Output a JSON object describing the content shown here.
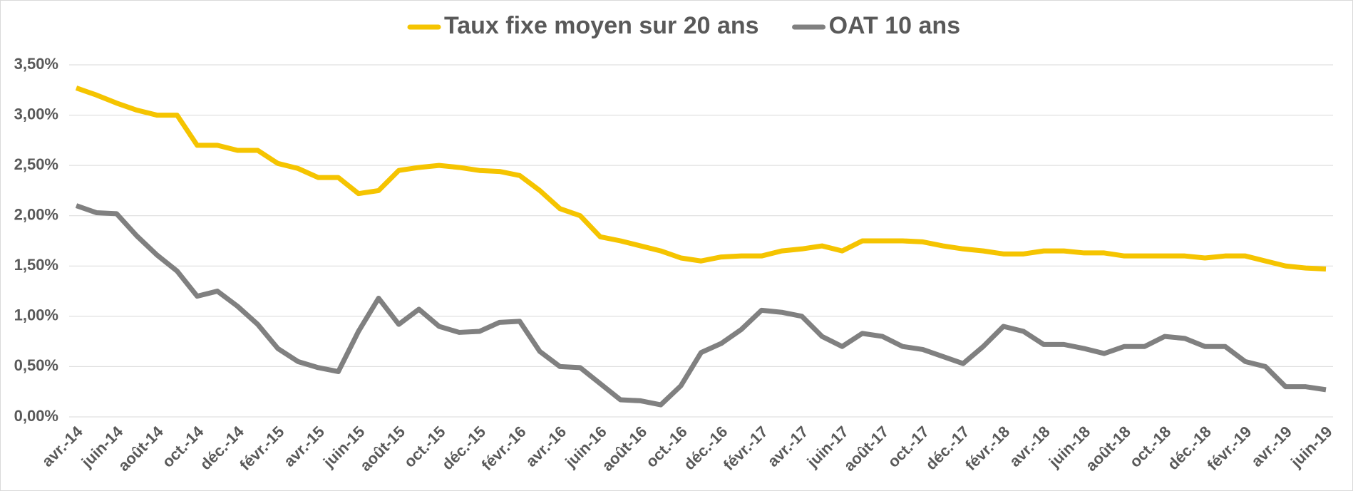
{
  "chart_data": {
    "type": "line",
    "categories": [
      "avr.-14",
      null,
      "juin-14",
      null,
      "août-14",
      null,
      "oct.-14",
      null,
      "déc.-14",
      null,
      "févr.-15",
      null,
      "avr.-15",
      null,
      "juin-15",
      null,
      "août-15",
      null,
      "oct.-15",
      null,
      "déc.-15",
      null,
      "févr.-16",
      null,
      "avr.-16",
      null,
      "juin-16",
      null,
      "août-16",
      null,
      "oct.-16",
      null,
      "déc.-16",
      null,
      "févr.-17",
      null,
      "avr.-17",
      null,
      "juin-17",
      null,
      "août-17",
      null,
      "oct.-17",
      null,
      "déc.-17",
      null,
      "févr.-18",
      null,
      "avr.-18",
      null,
      "juin-18",
      null,
      "août-18",
      null,
      "oct.-18",
      null,
      "déc.-18",
      null,
      "févr.-19",
      null,
      "avr.-19",
      null,
      "juin-19"
    ],
    "series": [
      {
        "name": "Taux fixe moyen sur 20 ans",
        "color": "#f5c400",
        "values": [
          3.27,
          3.2,
          3.12,
          3.05,
          3.0,
          3.0,
          2.7,
          2.7,
          2.65,
          2.65,
          2.52,
          2.47,
          2.38,
          2.38,
          2.22,
          2.25,
          2.45,
          2.48,
          2.5,
          2.48,
          2.45,
          2.44,
          2.4,
          2.25,
          2.07,
          2.0,
          1.79,
          1.75,
          1.7,
          1.65,
          1.58,
          1.55,
          1.59,
          1.6,
          1.6,
          1.65,
          1.67,
          1.7,
          1.65,
          1.75,
          1.75,
          1.75,
          1.74,
          1.7,
          1.67,
          1.65,
          1.62,
          1.62,
          1.65,
          1.65,
          1.63,
          1.63,
          1.6,
          1.6,
          1.6,
          1.6,
          1.58,
          1.6,
          1.6,
          1.55,
          1.5,
          1.48,
          1.47
        ]
      },
      {
        "name": "OAT 10 ans",
        "color": "#808080",
        "values": [
          2.1,
          2.03,
          2.02,
          1.8,
          1.61,
          1.45,
          1.2,
          1.25,
          1.1,
          0.92,
          0.68,
          0.55,
          0.49,
          0.45,
          0.85,
          1.18,
          0.92,
          1.07,
          0.9,
          0.84,
          0.85,
          0.94,
          0.95,
          0.65,
          0.5,
          0.49,
          0.33,
          0.17,
          0.16,
          0.12,
          0.31,
          0.64,
          0.73,
          0.87,
          1.06,
          1.04,
          1.0,
          0.8,
          0.7,
          0.83,
          0.8,
          0.7,
          0.67,
          0.6,
          0.53,
          0.7,
          0.9,
          0.85,
          0.72,
          0.72,
          0.68,
          0.63,
          0.7,
          0.7,
          0.8,
          0.78,
          0.7,
          0.7,
          0.55,
          0.5,
          0.3,
          0.3,
          0.27
        ]
      }
    ],
    "ylim": [
      0,
      3.5
    ],
    "yticks": [
      {
        "value": 0,
        "label": "0,00%"
      },
      {
        "value": 0.5,
        "label": "0,50%"
      },
      {
        "value": 1,
        "label": "1,00%"
      },
      {
        "value": 1.5,
        "label": "1,50%"
      },
      {
        "value": 2,
        "label": "2,00%"
      },
      {
        "value": 2.5,
        "label": "2,50%"
      },
      {
        "value": 3,
        "label": "3,00%"
      },
      {
        "value": 3.5,
        "label": "3,50%"
      }
    ],
    "grid": true,
    "legend": "top"
  }
}
